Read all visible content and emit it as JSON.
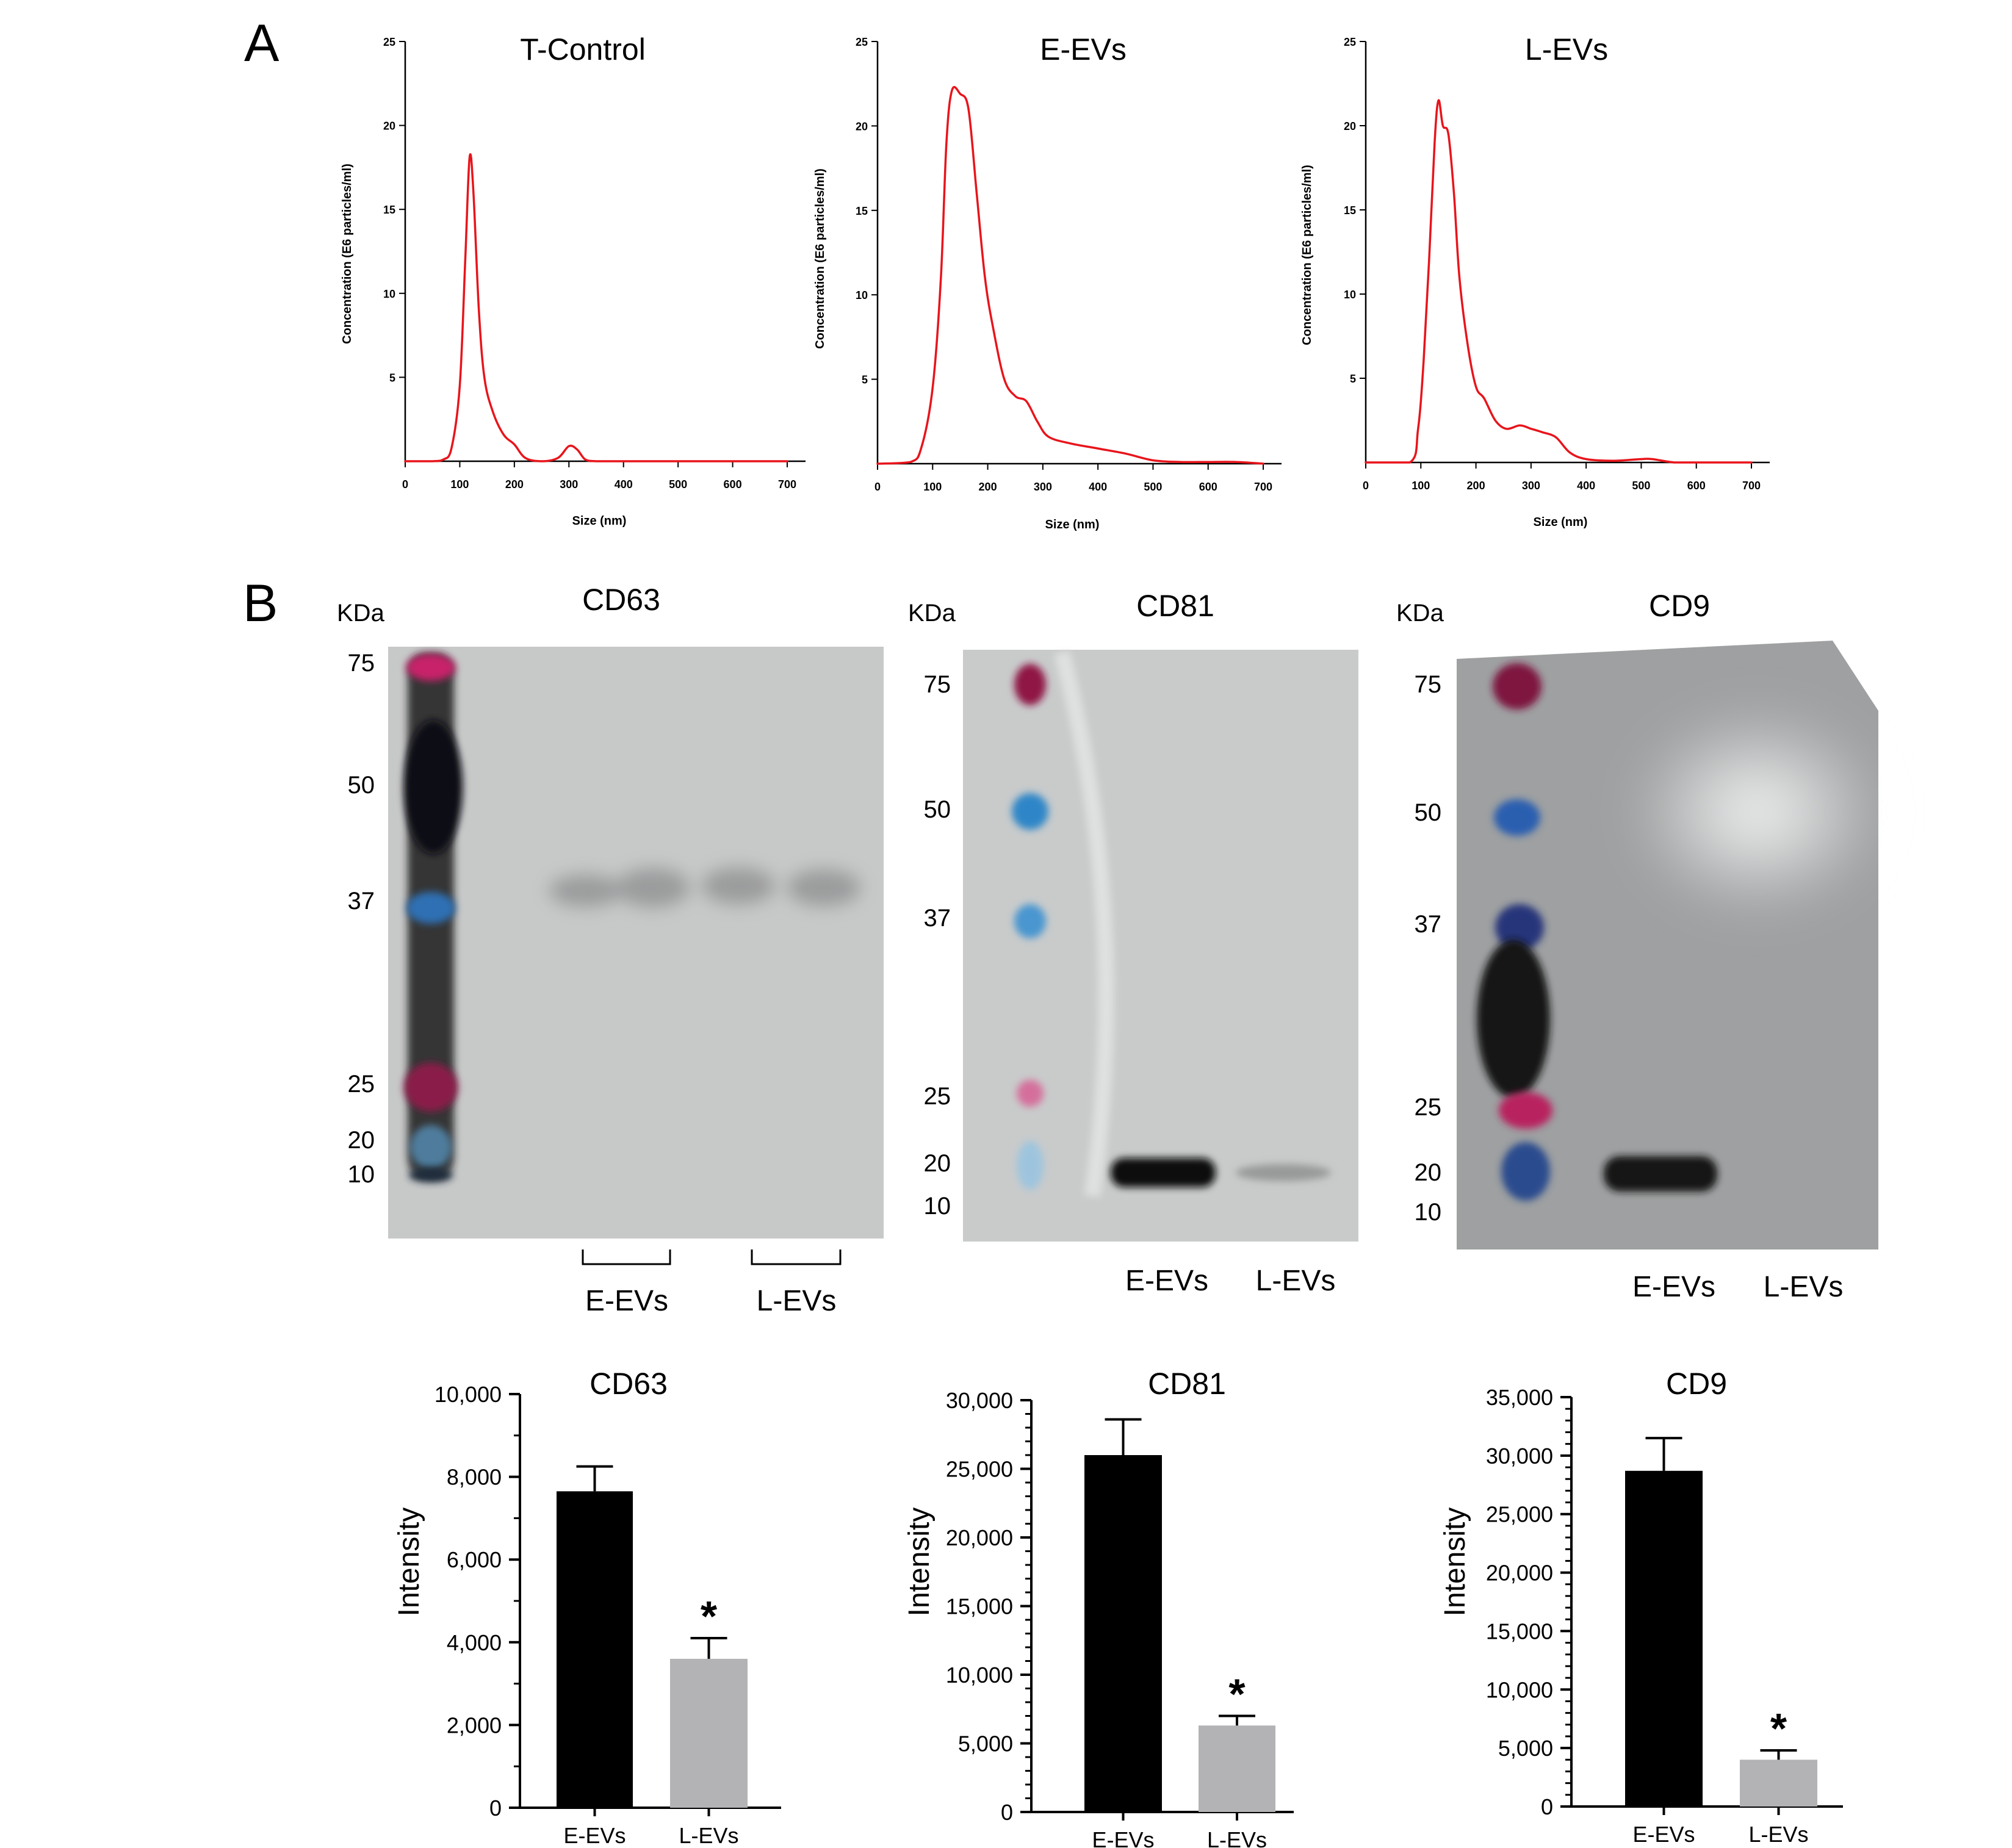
{
  "panels": {
    "a": "A",
    "b": "B"
  },
  "chart_data": [
    {
      "type": "line",
      "title": "T-Control",
      "xlabel": "Size (nm)",
      "ylabel": "Concentration (E6 particles/ml)",
      "xlim": [
        0,
        700
      ],
      "ylim": [
        0,
        25
      ],
      "xticks": [
        0,
        100,
        200,
        300,
        400,
        500,
        600,
        700
      ],
      "yticks": [
        5,
        10,
        15,
        20,
        25
      ],
      "grid": false,
      "color": "#e8141b",
      "x": [
        0,
        50,
        70,
        85,
        100,
        110,
        118,
        125,
        135,
        145,
        160,
        180,
        200,
        220,
        250,
        280,
        300,
        315,
        330,
        350,
        400,
        500,
        600,
        700
      ],
      "y": [
        0,
        0,
        0.1,
        0.8,
        4.5,
        12,
        18.1,
        16,
        9,
        5,
        3,
        1.6,
        1,
        0.2,
        0,
        0.2,
        0.9,
        0.7,
        0.1,
        0,
        0,
        0,
        0,
        0
      ]
    },
    {
      "type": "line",
      "title": "E-EVs",
      "xlabel": "Size (nm)",
      "ylabel": "Concentration (E6 particles/ml)",
      "xlim": [
        0,
        700
      ],
      "ylim": [
        0,
        25
      ],
      "xticks": [
        0,
        100,
        200,
        300,
        400,
        500,
        600,
        700
      ],
      "yticks": [
        5,
        10,
        15,
        20,
        25
      ],
      "grid": false,
      "color": "#e8141b",
      "x": [
        0,
        60,
        80,
        100,
        115,
        125,
        135,
        150,
        165,
        180,
        195,
        210,
        230,
        250,
        270,
        290,
        310,
        350,
        400,
        450,
        500,
        550,
        600,
        650,
        700
      ],
      "y": [
        0,
        0.1,
        1,
        4.5,
        11,
        19,
        22.1,
        21.9,
        21,
        16,
        11,
        8,
        5,
        4,
        3.7,
        2.5,
        1.6,
        1.2,
        0.9,
        0.6,
        0.2,
        0.1,
        0.1,
        0.1,
        0
      ]
    },
    {
      "type": "line",
      "title": "L-EVs",
      "xlabel": "Size (nm)",
      "ylabel": "Concentration (E6 particles/ml)",
      "xlim": [
        0,
        700
      ],
      "ylim": [
        0,
        25
      ],
      "xticks": [
        0,
        100,
        200,
        300,
        400,
        500,
        600,
        700
      ],
      "yticks": [
        5,
        10,
        15,
        20,
        25
      ],
      "grid": false,
      "color": "#e8141b",
      "x": [
        0,
        80,
        95,
        105,
        115,
        125,
        132,
        140,
        150,
        160,
        170,
        185,
        200,
        215,
        235,
        255,
        280,
        300,
        320,
        345,
        370,
        400,
        450,
        500,
        520,
        560,
        600,
        700
      ],
      "y": [
        0,
        0,
        2,
        6,
        12,
        19,
        21.5,
        20,
        19.5,
        16,
        11,
        7,
        4.5,
        3.8,
        2.5,
        2,
        2.2,
        2,
        1.8,
        1.5,
        0.6,
        0.2,
        0.1,
        0.2,
        0.2,
        0,
        0,
        0
      ]
    },
    {
      "type": "bar",
      "title": "CD63",
      "categories": [
        "E-EVs",
        "L-EVs"
      ],
      "values": [
        7650,
        3600
      ],
      "errors": [
        600,
        500
      ],
      "ylabel": "Intensity",
      "ylim": [
        0,
        10000
      ],
      "yticks": [
        0,
        2000,
        4000,
        6000,
        8000,
        10000
      ],
      "ytick_labels": [
        "0",
        "2,000",
        "4,000",
        "6,000",
        "8,000",
        "10,000"
      ],
      "minor_step": 1000,
      "colors": [
        "#000000",
        "#b3b3b6"
      ],
      "significance": [
        "",
        "*"
      ]
    },
    {
      "type": "bar",
      "title": "CD81",
      "categories": [
        "E-EVs",
        "L-EVs"
      ],
      "values": [
        26000,
        6300
      ],
      "errors": [
        2600,
        700
      ],
      "ylabel": "Intensity",
      "ylim": [
        0,
        30000
      ],
      "yticks": [
        0,
        5000,
        10000,
        15000,
        20000,
        25000,
        30000
      ],
      "ytick_labels": [
        "0",
        "5,000",
        "10,000",
        "15,000",
        "20,000",
        "25,000",
        "30,000"
      ],
      "minor_step": 1000,
      "colors": [
        "#000000",
        "#b3b3b6"
      ],
      "significance": [
        "",
        "*"
      ]
    },
    {
      "type": "bar",
      "title": "CD9",
      "categories": [
        "E-EVs",
        "L-EVs"
      ],
      "values": [
        28700,
        4000
      ],
      "errors": [
        2800,
        800
      ],
      "ylabel": "Intensity",
      "ylim": [
        0,
        35000
      ],
      "yticks": [
        0,
        5000,
        10000,
        15000,
        20000,
        25000,
        30000,
        35000
      ],
      "ytick_labels": [
        "0",
        "5,000",
        "10,000",
        "15,000",
        "20,000",
        "25,000",
        "30,000",
        "35,000"
      ],
      "minor_step": 1000,
      "colors": [
        "#000000",
        "#b3b3b6"
      ],
      "significance": [
        "",
        "*"
      ]
    }
  ],
  "blots": [
    {
      "title": "CD63",
      "unit_label": "KDa",
      "markers": [
        "75",
        "50",
        "37",
        "25",
        "20",
        "10"
      ],
      "lanes": [
        "E-EVs",
        "L-EVs"
      ],
      "colors": {
        "membrane": "#c7c8c8",
        "ladder": "#1c1c1e",
        "pink": "#c8226a",
        "blue": "#2f6fb3"
      }
    },
    {
      "title": "CD81",
      "unit_label": "KDa",
      "markers": [
        "75",
        "50",
        "37",
        "25",
        "20",
        "10"
      ],
      "lanes": [
        "E-EVs",
        "L-EVs"
      ],
      "colors": {
        "membrane": "#c9cbcb",
        "band": "#111111",
        "pink": "#c8226a",
        "blue": "#2f86c8"
      }
    },
    {
      "title": "CD9",
      "unit_label": "KDa",
      "markers": [
        "75",
        "50",
        "37",
        "25",
        "20",
        "10"
      ],
      "lanes": [
        "E-EVs",
        "L-EVs"
      ],
      "colors": {
        "membrane": "#9ea0a1",
        "ladder": "#141416",
        "band": "#121212",
        "pink": "#b8205e",
        "blue": "#2b5fb0"
      }
    }
  ]
}
